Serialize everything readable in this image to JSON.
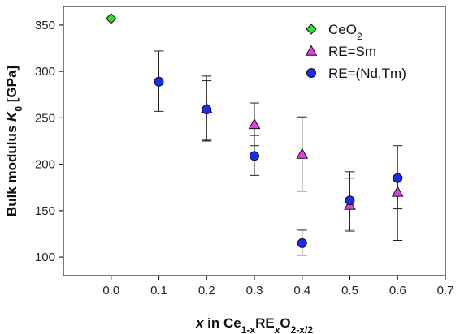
{
  "chart_data": {
    "type": "scatter",
    "xlim": [
      -0.1,
      0.7
    ],
    "ylim": [
      80,
      370
    ],
    "x_ticks": [
      0.0,
      0.1,
      0.2,
      0.3,
      0.4,
      0.5,
      0.6,
      0.7
    ],
    "x_tick_labels": [
      "0.0",
      "0.1",
      "0.2",
      "0.3",
      "0.4",
      "0.5",
      "0.6",
      "0.7"
    ],
    "y_ticks": [
      100,
      150,
      200,
      250,
      300,
      350
    ],
    "y_tick_labels": [
      "100",
      "150",
      "200",
      "250",
      "300",
      "350"
    ],
    "xlabel": {
      "parts": [
        {
          "text": "x",
          "style": "italic"
        },
        {
          "text": " in Ce",
          "style": "normal"
        },
        {
          "text": "1-x",
          "style": "sub"
        },
        {
          "text": "RE",
          "style": "normal"
        },
        {
          "text": "x",
          "style": "sub-italic"
        },
        {
          "text": "O",
          "style": "normal"
        },
        {
          "text": "2-x/2",
          "style": "sub"
        }
      ]
    },
    "ylabel": {
      "parts": [
        {
          "text": "Bulk modulus ",
          "style": "normal"
        },
        {
          "text": "K",
          "style": "italic"
        },
        {
          "text": "0",
          "style": "sub"
        },
        {
          "text": " [GPa]",
          "style": "normal"
        }
      ]
    },
    "legend_position": "top-right",
    "grid": false,
    "series": [
      {
        "name": "CeO",
        "name_sub": "2",
        "marker": "diamond",
        "color": "#33dd33",
        "points": [
          {
            "x": 0.0,
            "y": 357
          }
        ]
      },
      {
        "name": "RE=Sm",
        "marker": "triangle",
        "color": "#e040e0",
        "points": [
          {
            "x": 0.2,
            "y": 260,
            "err_low": 226,
            "err_high": 290
          },
          {
            "x": 0.3,
            "y": 243,
            "err_low": 220,
            "err_high": 266
          },
          {
            "x": 0.4,
            "y": 211,
            "err_low": 171,
            "err_high": 251
          },
          {
            "x": 0.5,
            "y": 156,
            "err_low": 128,
            "err_high": 185
          },
          {
            "x": 0.6,
            "y": 170,
            "err_low": 152,
            "err_high": 187
          }
        ]
      },
      {
        "name": "RE=(Nd,Tm)",
        "marker": "circle",
        "color": "#1a2ee6",
        "points": [
          {
            "x": 0.1,
            "y": 289,
            "err_low": 257,
            "err_high": 322
          },
          {
            "x": 0.2,
            "y": 259,
            "err_low": 225,
            "err_high": 295
          },
          {
            "x": 0.3,
            "y": 209,
            "err_low": 188,
            "err_high": 231
          },
          {
            "x": 0.4,
            "y": 115,
            "err_low": 102,
            "err_high": 129
          },
          {
            "x": 0.5,
            "y": 161,
            "err_low": 130,
            "err_high": 192
          },
          {
            "x": 0.6,
            "y": 185,
            "err_low": 118,
            "err_high": 220
          }
        ]
      }
    ]
  }
}
